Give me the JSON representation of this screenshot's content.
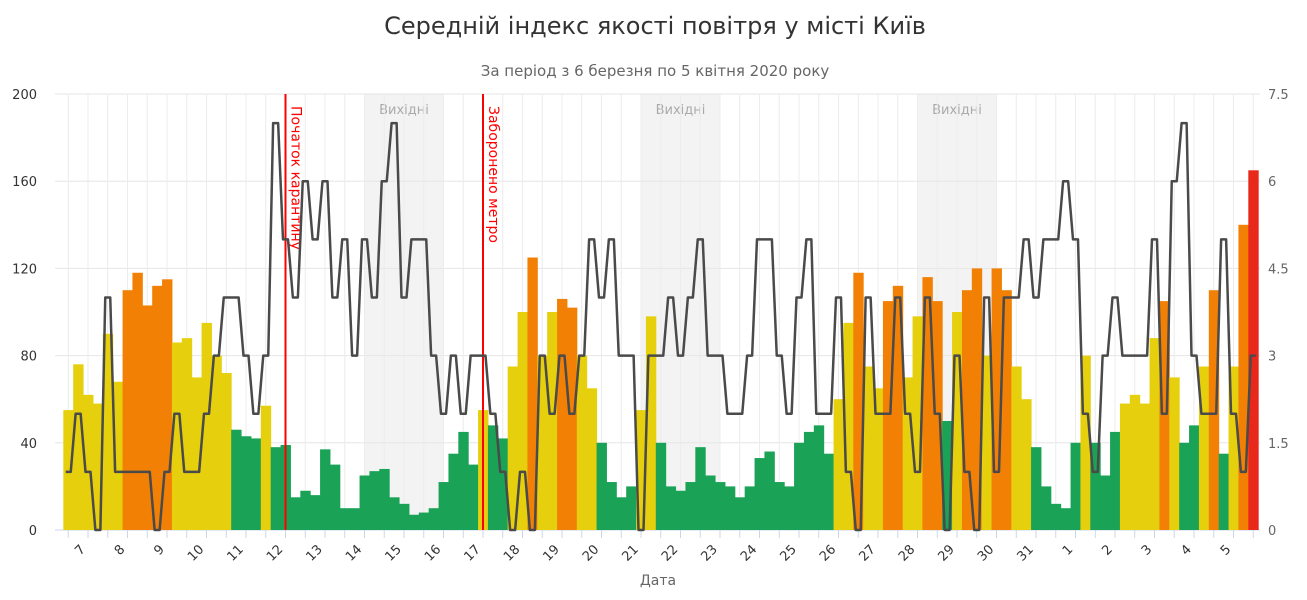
{
  "chart_data": {
    "type": "bar+line",
    "title": "Середній індекс якості повітря у місті Київ",
    "subtitle": "За період з 6 березня по 5 квітня 2020 року",
    "xlabel": "Дата",
    "ylabel_left": "",
    "ylabel_right": "",
    "ylim_left": [
      0,
      200
    ],
    "ylim_right": [
      0,
      7.5
    ],
    "yticks_left": [
      "0",
      "40",
      "80",
      "120",
      "160",
      "200"
    ],
    "yticks_right": [
      "0",
      "1.5",
      "3",
      "4.5",
      "6",
      "7.5"
    ],
    "xtick_labels": [
      "7",
      "8",
      "9",
      "10",
      "11",
      "12",
      "13",
      "14",
      "15",
      "16",
      "17",
      "18",
      "19",
      "20",
      "21",
      "22",
      "23",
      "24",
      "25",
      "26",
      "27",
      "28",
      "29",
      "30",
      "31",
      "1",
      "2",
      "3",
      "4",
      "5"
    ],
    "grid": true,
    "legend": "none",
    "color_scale": [
      {
        "max": 50,
        "color": "#1aa356"
      },
      {
        "max": 100,
        "color": "#e6cf0c"
      },
      {
        "max": 150,
        "color": "#f28005"
      },
      {
        "max": 999,
        "color": "#e8281a"
      }
    ],
    "line_color": "#4a4a4a",
    "annotations": [
      {
        "date": "2020-03-12 00:00",
        "label": "Початок карантину",
        "color": "#ff0000"
      },
      {
        "date": "2020-03-17 00:00",
        "label": "Заборонено метро",
        "color": "#ff0000"
      }
    ],
    "bands": [
      {
        "from": "2020-03-14",
        "to": "2020-03-16",
        "label": "Вихідні"
      },
      {
        "from": "2020-03-21",
        "to": "2020-03-23",
        "label": "Вихідні"
      },
      {
        "from": "2020-03-28",
        "to": "2020-03-30",
        "label": "Вихідні"
      }
    ],
    "x": [
      "2020-03-06 12:00",
      "2020-03-06 18:00",
      "2020-03-07 00:00",
      "2020-03-07 06:00",
      "2020-03-07 12:00",
      "2020-03-07 18:00",
      "2020-03-08 00:00",
      "2020-03-08 06:00",
      "2020-03-08 12:00",
      "2020-03-08 18:00",
      "2020-03-09 00:00",
      "2020-03-09 06:00",
      "2020-03-09 12:00",
      "2020-03-09 18:00",
      "2020-03-10 00:00",
      "2020-03-10 06:00",
      "2020-03-10 12:00",
      "2020-03-10 18:00",
      "2020-03-11 00:00",
      "2020-03-11 06:00",
      "2020-03-11 12:00",
      "2020-03-11 18:00",
      "2020-03-12 00:00",
      "2020-03-12 06:00",
      "2020-03-12 12:00",
      "2020-03-12 18:00",
      "2020-03-13 00:00",
      "2020-03-13 06:00",
      "2020-03-13 12:00",
      "2020-03-13 18:00",
      "2020-03-14 00:00",
      "2020-03-14 06:00",
      "2020-03-14 12:00",
      "2020-03-14 18:00",
      "2020-03-15 00:00",
      "2020-03-15 06:00",
      "2020-03-15 12:00",
      "2020-03-15 18:00",
      "2020-03-16 00:00",
      "2020-03-16 06:00",
      "2020-03-16 12:00",
      "2020-03-16 18:00",
      "2020-03-17 00:00",
      "2020-03-17 06:00",
      "2020-03-17 12:00",
      "2020-03-17 18:00",
      "2020-03-18 00:00",
      "2020-03-18 06:00",
      "2020-03-18 12:00",
      "2020-03-18 18:00",
      "2020-03-19 00:00",
      "2020-03-19 06:00",
      "2020-03-19 12:00",
      "2020-03-19 18:00",
      "2020-03-20 00:00",
      "2020-03-20 06:00",
      "2020-03-20 12:00",
      "2020-03-20 18:00",
      "2020-03-21 00:00",
      "2020-03-21 06:00",
      "2020-03-21 12:00",
      "2020-03-21 18:00",
      "2020-03-22 00:00",
      "2020-03-22 06:00",
      "2020-03-22 12:00",
      "2020-03-22 18:00",
      "2020-03-23 00:00",
      "2020-03-23 06:00",
      "2020-03-23 12:00",
      "2020-03-23 18:00",
      "2020-03-24 00:00",
      "2020-03-24 06:00",
      "2020-03-24 12:00",
      "2020-03-24 18:00",
      "2020-03-25 00:00",
      "2020-03-25 06:00",
      "2020-03-25 12:00",
      "2020-03-25 18:00",
      "2020-03-26 00:00",
      "2020-03-26 06:00",
      "2020-03-26 12:00",
      "2020-03-26 18:00",
      "2020-03-27 00:00",
      "2020-03-27 06:00",
      "2020-03-27 12:00",
      "2020-03-27 18:00",
      "2020-03-28 00:00",
      "2020-03-28 06:00",
      "2020-03-28 12:00",
      "2020-03-28 18:00",
      "2020-03-29 00:00",
      "2020-03-29 06:00",
      "2020-03-29 12:00",
      "2020-03-29 18:00",
      "2020-03-30 00:00",
      "2020-03-30 06:00",
      "2020-03-30 12:00",
      "2020-03-30 18:00",
      "2020-03-31 00:00",
      "2020-03-31 06:00",
      "2020-03-31 12:00",
      "2020-03-31 18:00",
      "2020-04-01 00:00",
      "2020-04-01 06:00",
      "2020-04-01 12:00",
      "2020-04-01 18:00",
      "2020-04-02 00:00",
      "2020-04-02 06:00",
      "2020-04-02 12:00",
      "2020-04-02 18:00",
      "2020-04-03 00:00",
      "2020-04-03 06:00",
      "2020-04-03 12:00",
      "2020-04-03 18:00",
      "2020-04-04 00:00",
      "2020-04-04 06:00",
      "2020-04-04 12:00",
      "2020-04-04 18:00",
      "2020-04-05 00:00",
      "2020-04-05 06:00",
      "2020-04-05 12:00"
    ],
    "series": [
      {
        "type": "bar",
        "axis": "left",
        "values": [
          55,
          76,
          62,
          58,
          90,
          68,
          110,
          118,
          103,
          112,
          115,
          86,
          88,
          70,
          95,
          80,
          72,
          46,
          43,
          42,
          57,
          38,
          39,
          15,
          18,
          16,
          37,
          30,
          10,
          10,
          25,
          27,
          28,
          15,
          12,
          7,
          8,
          10,
          22,
          35,
          45,
          30,
          55,
          48,
          42,
          75,
          100,
          125,
          80,
          100,
          106,
          102,
          80,
          65,
          40,
          22,
          15,
          20,
          55,
          98,
          40,
          20,
          18,
          22,
          38,
          25,
          22,
          20,
          15,
          20,
          33,
          36,
          22,
          20,
          40,
          45,
          48,
          35,
          60,
          95,
          118,
          75,
          65,
          105,
          112,
          70,
          98,
          116,
          105,
          50,
          100,
          110,
          120,
          80,
          120,
          110,
          75,
          60,
          38,
          20,
          12,
          10,
          40,
          80,
          40,
          25,
          45,
          58,
          62,
          58,
          88,
          105,
          70,
          40,
          48,
          75,
          110,
          35,
          75,
          140,
          165
        ]
      },
      {
        "type": "line",
        "axis": "right",
        "values": [
          1,
          2,
          1,
          0,
          4,
          1,
          1,
          1,
          1,
          0,
          1,
          2,
          1,
          1,
          2,
          3,
          4,
          4,
          3,
          2,
          3,
          7,
          5,
          4,
          6,
          5,
          6,
          4,
          5,
          3,
          5,
          4,
          6,
          7,
          4,
          5,
          5,
          3,
          2,
          3,
          2,
          3,
          3,
          2,
          1,
          0,
          1,
          0,
          3,
          2,
          3,
          2,
          3,
          5,
          4,
          5,
          3,
          3,
          0,
          3,
          3,
          4,
          3,
          4,
          5,
          3,
          3,
          2,
          2,
          3,
          5,
          5,
          3,
          2,
          4,
          5,
          2,
          2,
          4,
          1,
          0,
          4,
          2,
          2,
          4,
          2,
          1,
          4,
          2,
          0,
          3,
          1,
          0,
          4,
          1,
          4,
          4,
          5,
          4,
          5,
          5,
          6,
          5,
          2,
          1,
          3,
          4,
          3,
          3,
          3,
          5,
          2,
          6,
          7,
          3,
          2,
          2,
          5,
          2,
          1,
          3
        ]
      }
    ]
  }
}
